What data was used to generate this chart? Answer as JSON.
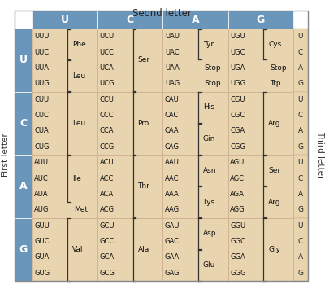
{
  "title": "Seond letter",
  "first_letter_label": "First letter",
  "third_letter_label": "Third letter",
  "second_letters": [
    "U",
    "C",
    "A",
    "G"
  ],
  "first_letters": [
    "U",
    "C",
    "A",
    "G"
  ],
  "third_letters": [
    "U",
    "C",
    "A",
    "G"
  ],
  "header_color": "#6a96bb",
  "cell_color": "#e8d5b0",
  "bg_color": "#ffffff",
  "codon_fs": 6.0,
  "aa_fs": 6.5,
  "header_fs": 9.0,
  "row_header_fs": 9.0,
  "title_fs": 8.5,
  "label_fs": 7.5,
  "third_fs": 6.5,
  "codon_data": [
    [
      {
        "codons": [
          "UUU",
          "UUC"
        ],
        "aa": "Phe",
        "codons2": [
          "UUA",
          "UUG"
        ],
        "aa2": "Leu",
        "type": "bracket2x2"
      },
      {
        "codons": [
          "UCU",
          "UCC",
          "UCA",
          "UCG"
        ],
        "aa": "Ser",
        "type": "bracket4"
      },
      {
        "codons": [
          "UAU",
          "UAC"
        ],
        "aa": "Tyr",
        "codons2": [
          "UAA",
          "UAG"
        ],
        "aa2_list": [
          "Stop",
          "Stop"
        ],
        "type": "bracket2_individual2"
      },
      {
        "codons": [
          "UGU",
          "UGC"
        ],
        "aa": "Cys",
        "codons2": [
          "UGA",
          "UGG"
        ],
        "aa2_list": [
          "Stop",
          "Trp"
        ],
        "type": "bracket2_individual2"
      }
    ],
    [
      {
        "codons": [
          "CUU",
          "CUC",
          "CUA",
          "CUG"
        ],
        "aa": "Leu",
        "type": "bracket4"
      },
      {
        "codons": [
          "CCU",
          "CCC",
          "CCA",
          "CCG"
        ],
        "aa": "Pro",
        "type": "bracket4"
      },
      {
        "codons": [
          "CAU",
          "CAC"
        ],
        "aa": "His",
        "codons2": [
          "CAA",
          "CAG"
        ],
        "aa2": "Gin",
        "type": "bracket2x2"
      },
      {
        "codons": [
          "CGU",
          "CGC",
          "CGA",
          "CGG"
        ],
        "aa": "Arg",
        "type": "bracket4"
      }
    ],
    [
      {
        "codons": [
          "AUU",
          "AUC",
          "AUA"
        ],
        "aa": "Ile",
        "codons2": [
          "AUG"
        ],
        "aa2": "Met",
        "type": "bracket3_individual1"
      },
      {
        "codons": [
          "ACU",
          "ACC",
          "ACA",
          "ACG"
        ],
        "aa": "Thr",
        "type": "bracket4"
      },
      {
        "codons": [
          "AAU",
          "AAC"
        ],
        "aa": "Asn",
        "codons2": [
          "AAA",
          "AAG"
        ],
        "aa2": "Lys",
        "type": "bracket2x2"
      },
      {
        "codons": [
          "AGU",
          "AGC"
        ],
        "aa": "Ser",
        "codons2": [
          "AGA",
          "AGG"
        ],
        "aa2": "Arg",
        "type": "bracket2x2"
      }
    ],
    [
      {
        "codons": [
          "GUU",
          "GUC",
          "GUA",
          "GUG"
        ],
        "aa": "Val",
        "type": "bracket4"
      },
      {
        "codons": [
          "GCU",
          "GCC",
          "GCA",
          "GCG"
        ],
        "aa": "Ala",
        "type": "bracket4"
      },
      {
        "codons": [
          "GAU",
          "GAC"
        ],
        "aa": "Asp",
        "codons2": [
          "GAA",
          "GAG"
        ],
        "aa2": "Glu",
        "type": "bracket2x2"
      },
      {
        "codons": [
          "GGU",
          "GGC",
          "GGA",
          "GGG"
        ],
        "aa": "Gly",
        "type": "bracket4"
      }
    ]
  ]
}
